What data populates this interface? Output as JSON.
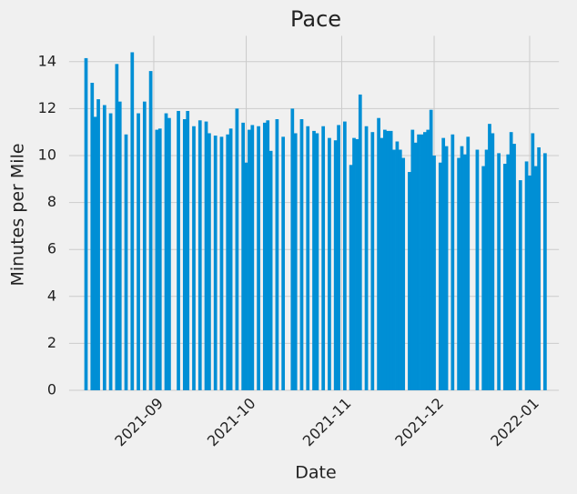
{
  "chart_data": {
    "type": "bar",
    "title": "Pace",
    "x_label": "Date",
    "y_label": "Minutes per Mile",
    "color": "#008fd5",
    "grid": true,
    "ylim": [
      0,
      15.1
    ],
    "yticks": [
      0,
      2,
      4,
      6,
      8,
      10,
      12,
      14
    ],
    "categories": [
      null,
      null,
      null,
      null,
      null,
      null,
      null,
      null,
      null,
      null,
      null,
      null,
      null,
      null,
      null,
      null,
      null,
      null,
      null,
      null,
      null,
      null,
      null,
      null,
      null,
      null,
      null,
      "2021-09",
      null,
      null,
      null,
      null,
      null,
      null,
      null,
      null,
      null,
      null,
      null,
      null,
      null,
      null,
      null,
      null,
      null,
      null,
      null,
      null,
      null,
      null,
      null,
      null,
      null,
      null,
      null,
      null,
      null,
      "2021-10",
      null,
      null,
      null,
      null,
      null,
      null,
      null,
      null,
      null,
      null,
      null,
      null,
      null,
      null,
      null,
      null,
      null,
      null,
      null,
      null,
      null,
      null,
      null,
      null,
      null,
      null,
      null,
      null,
      null,
      null,
      "2021-11",
      null,
      null,
      null,
      null,
      null,
      null,
      null,
      null,
      null,
      null,
      null,
      null,
      null,
      null,
      null,
      null,
      null,
      null,
      null,
      null,
      null,
      null,
      null,
      null,
      null,
      null,
      null,
      null,
      null,
      "2021-12",
      null,
      null,
      null,
      null,
      null,
      null,
      null,
      null,
      null,
      null,
      null,
      null,
      null,
      null,
      null,
      null,
      null,
      null,
      null,
      null,
      null,
      null,
      null,
      null,
      null,
      null,
      null,
      null,
      null,
      null,
      "2022-01",
      null,
      null,
      null,
      null,
      null,
      null,
      null,
      null,
      null
    ],
    "values": [
      null,
      null,
      null,
      null,
      null,
      14.15,
      null,
      13.1,
      11.65,
      12.4,
      null,
      12.15,
      null,
      11.8,
      null,
      13.9,
      12.3,
      null,
      10.9,
      null,
      14.4,
      null,
      11.8,
      null,
      12.3,
      null,
      13.6,
      null,
      11.1,
      11.15,
      null,
      11.8,
      11.6,
      null,
      null,
      11.9,
      null,
      11.55,
      11.9,
      null,
      11.25,
      null,
      11.5,
      null,
      11.45,
      10.95,
      null,
      10.85,
      null,
      10.8,
      null,
      10.9,
      11.15,
      null,
      12.0,
      null,
      11.4,
      9.7,
      11.1,
      11.3,
      null,
      11.25,
      null,
      11.4,
      11.5,
      10.2,
      null,
      11.55,
      null,
      10.8,
      null,
      null,
      12.0,
      10.95,
      null,
      11.55,
      null,
      11.25,
      null,
      11.05,
      10.95,
      null,
      11.25,
      null,
      10.75,
      null,
      10.65,
      11.3,
      null,
      11.45,
      null,
      9.6,
      10.75,
      10.7,
      12.6,
      null,
      11.25,
      null,
      11.0,
      null,
      11.6,
      10.75,
      11.1,
      11.05,
      11.05,
      10.25,
      10.6,
      10.25,
      9.9,
      null,
      9.3,
      11.1,
      10.55,
      10.9,
      10.9,
      11.0,
      11.1,
      11.95,
      10.0,
      null,
      9.7,
      10.75,
      10.4,
      null,
      10.9,
      null,
      9.9,
      10.4,
      10.05,
      10.8,
      null,
      null,
      10.25,
      null,
      9.55,
      10.25,
      11.35,
      10.95,
      null,
      10.1,
      null,
      9.65,
      10.05,
      11.0,
      10.5,
      null,
      8.95,
      null,
      9.75,
      9.15,
      10.95,
      9.55,
      10.35,
      null,
      10.1,
      null,
      null,
      null,
      null
    ]
  }
}
